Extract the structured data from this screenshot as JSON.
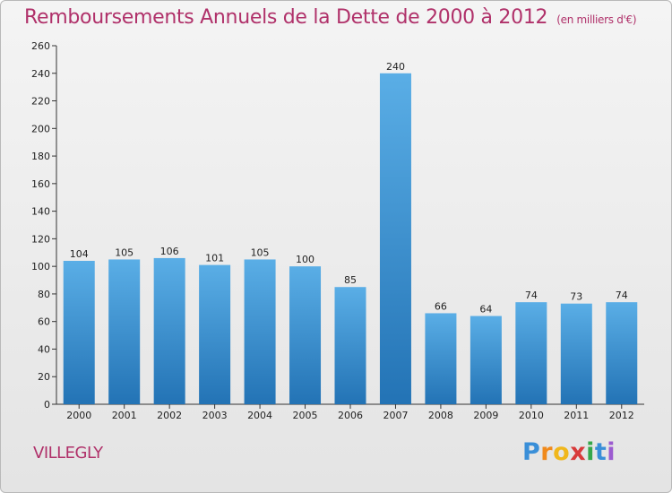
{
  "header": {
    "title": "Remboursements Annuels de la Dette de 2000 à 2012",
    "unit": "(en milliers d'€)"
  },
  "footer": {
    "city": "VILLEGLY",
    "brand_letters": [
      "P",
      "r",
      "o",
      "x",
      "i",
      "t",
      "i"
    ]
  },
  "colors": {
    "title": "#b0316a",
    "bar_top": "#5aaee6",
    "bar_bottom": "#2373b5",
    "brand": [
      "#3a8fd8",
      "#f08a1c",
      "#f0b71c",
      "#d83a3a",
      "#36a74a",
      "#3a8fd8",
      "#9c5bd0"
    ]
  },
  "chart_data": {
    "type": "bar",
    "title": "Remboursements Annuels de la Dette de 2000 à 2012",
    "subtitle": "(en milliers d'€)",
    "categories": [
      "2000",
      "2001",
      "2002",
      "2003",
      "2004",
      "2005",
      "2006",
      "2007",
      "2008",
      "2009",
      "2010",
      "2011",
      "2012"
    ],
    "values": [
      104,
      105,
      106,
      101,
      105,
      100,
      85,
      240,
      66,
      64,
      74,
      73,
      74
    ],
    "ylim": [
      0,
      260
    ],
    "yticks": [
      0,
      20,
      40,
      60,
      80,
      100,
      120,
      140,
      160,
      180,
      200,
      220,
      240,
      260
    ],
    "grid": false,
    "legend": "none"
  }
}
